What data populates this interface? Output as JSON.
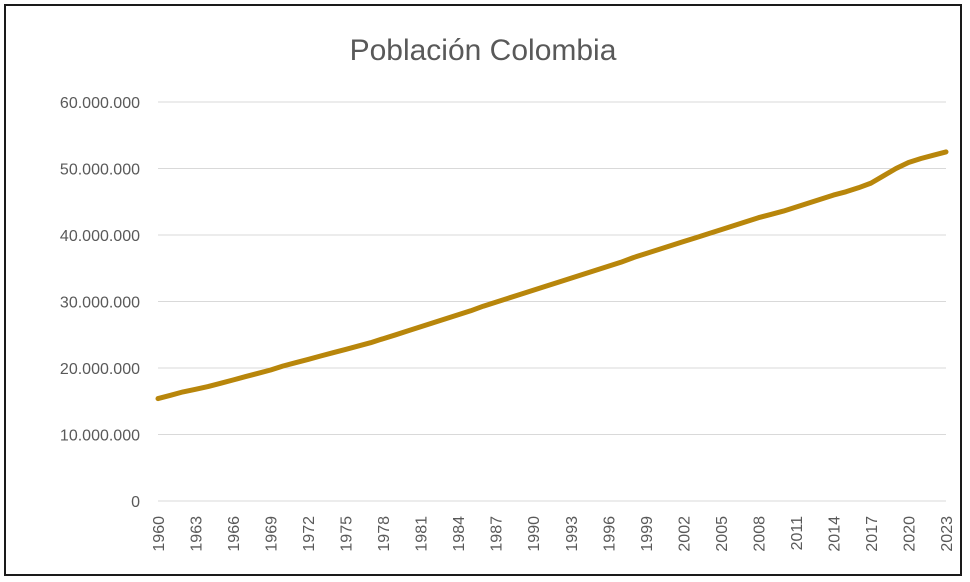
{
  "chart_data": {
    "type": "line",
    "title": "Población Colombia",
    "xlabel": "",
    "ylabel": "",
    "ylim": [
      0,
      60000000
    ],
    "y_ticks": [
      0,
      10000000,
      20000000,
      30000000,
      40000000,
      50000000,
      60000000
    ],
    "y_tick_labels": [
      "0",
      "10.000.000",
      "20.000.000",
      "30.000.000",
      "40.000.000",
      "50.000.000",
      "60.000.000"
    ],
    "x_tick_labels": [
      "1960",
      "1963",
      "1966",
      "1969",
      "1972",
      "1975",
      "1978",
      "1981",
      "1984",
      "1987",
      "1990",
      "1993",
      "1996",
      "1999",
      "2002",
      "2005",
      "2008",
      "2011",
      "2014",
      "2017",
      "2020",
      "2023"
    ],
    "grid": "horizontal",
    "legend": "none",
    "colors": {
      "series": "#B8860B",
      "grid": "#D9D9D9",
      "text": "#595959"
    },
    "series": [
      {
        "x": [
          1960,
          1961,
          1962,
          1963,
          1964,
          1965,
          1966,
          1967,
          1968,
          1969,
          1970,
          1971,
          1972,
          1973,
          1974,
          1975,
          1976,
          1977,
          1978,
          1979,
          1980,
          1981,
          1982,
          1983,
          1984,
          1985,
          1986,
          1987,
          1988,
          1989,
          1990,
          1991,
          1992,
          1993,
          1994,
          1995,
          1996,
          1997,
          1998,
          1999,
          2000,
          2001,
          2002,
          2003,
          2004,
          2005,
          2006,
          2007,
          2008,
          2009,
          2010,
          2011,
          2012,
          2013,
          2014,
          2015,
          2016,
          2017,
          2018,
          2019,
          2020,
          2021,
          2022,
          2023
        ],
        "values": [
          15400000,
          15900000,
          16400000,
          16800000,
          17200000,
          17700000,
          18200000,
          18700000,
          19200000,
          19700000,
          20300000,
          20800000,
          21300000,
          21800000,
          22300000,
          22800000,
          23300000,
          23800000,
          24400000,
          25000000,
          25600000,
          26200000,
          26800000,
          27400000,
          28000000,
          28600000,
          29300000,
          29900000,
          30500000,
          31100000,
          31700000,
          32300000,
          32900000,
          33500000,
          34100000,
          34700000,
          35300000,
          35900000,
          36600000,
          37200000,
          37800000,
          38400000,
          39000000,
          39600000,
          40200000,
          40800000,
          41400000,
          42000000,
          42600000,
          43100000,
          43600000,
          44200000,
          44800000,
          45400000,
          46000000,
          46500000,
          47100000,
          47800000,
          48900000,
          50000000,
          50900000,
          51500000,
          52000000,
          52500000
        ]
      }
    ]
  }
}
